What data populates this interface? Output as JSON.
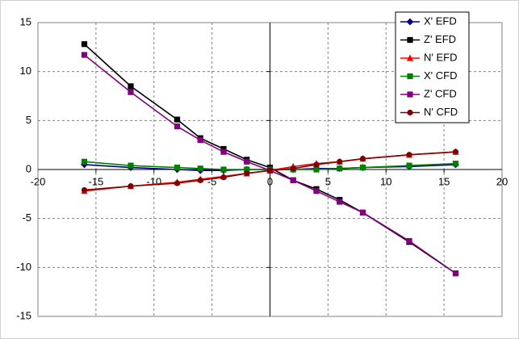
{
  "chart_data": {
    "type": "line",
    "x": [
      -16,
      -12,
      -8,
      -6,
      -4,
      -2,
      0,
      2,
      4,
      6,
      8,
      12,
      16
    ],
    "series": [
      {
        "name": "X' EFD",
        "color": "#000080",
        "marker": "diamond",
        "values": [
          0.5,
          0.2,
          0.0,
          -0.1,
          -0.1,
          0.0,
          0.0,
          0.0,
          0.1,
          0.1,
          0.2,
          0.3,
          0.5
        ]
      },
      {
        "name": "Z' EFD",
        "color": "#000000",
        "marker": "square",
        "values": [
          12.8,
          8.5,
          5.1,
          3.2,
          2.1,
          1.0,
          0.2,
          -1.1,
          -2.0,
          -3.1,
          -4.4,
          -7.4,
          -10.6
        ]
      },
      {
        "name": "N' EFD",
        "color": "#ff0000",
        "marker": "triangle",
        "values": [
          -2.2,
          -1.7,
          -1.3,
          -1.0,
          -0.7,
          -0.4,
          -0.1,
          0.3,
          0.6,
          0.8,
          1.1,
          1.5,
          1.8
        ]
      },
      {
        "name": "X' CFD",
        "color": "#008000",
        "marker": "square",
        "values": [
          0.8,
          0.4,
          0.2,
          0.1,
          0.0,
          0.0,
          0.0,
          0.0,
          0.0,
          0.1,
          0.2,
          0.4,
          0.6
        ]
      },
      {
        "name": "Z' CFD",
        "color": "#800080",
        "marker": "square",
        "values": [
          11.7,
          7.9,
          4.4,
          3.0,
          1.8,
          0.8,
          -0.1,
          -1.1,
          -2.2,
          -3.3,
          -4.4,
          -7.3,
          -10.6
        ]
      },
      {
        "name": "N' CFD",
        "color": "#800000",
        "marker": "circle",
        "values": [
          -2.1,
          -1.7,
          -1.4,
          -1.1,
          -0.8,
          -0.4,
          -0.1,
          0.1,
          0.5,
          0.8,
          1.1,
          1.5,
          1.8
        ]
      }
    ],
    "xlim": [
      -20,
      20
    ],
    "ylim": [
      -15,
      15
    ],
    "xticks": [
      -20,
      -15,
      -10,
      -5,
      0,
      5,
      10,
      15,
      20
    ],
    "yticks": [
      -15,
      -10,
      -5,
      0,
      5,
      10,
      15
    ],
    "grid": true,
    "legend": "upper-right"
  }
}
